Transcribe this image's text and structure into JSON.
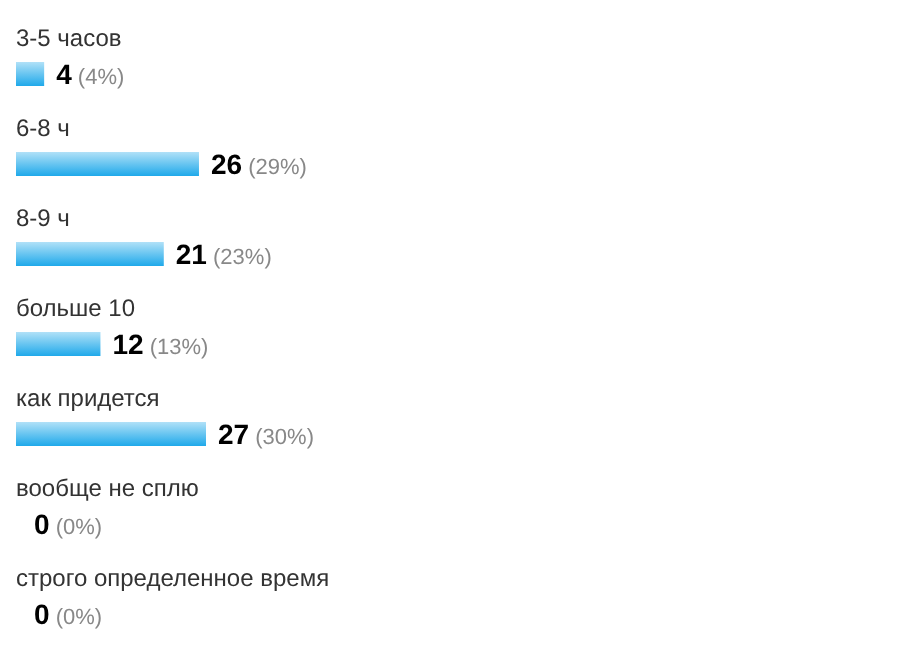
{
  "chart_data": {
    "type": "bar",
    "orientation": "horizontal",
    "categories": [
      "3-5 часов",
      "6-8 ч",
      "8-9 ч",
      "больше 10",
      "как придется",
      "вообще не сплю",
      "строго определенное время"
    ],
    "values": [
      4,
      26,
      21,
      12,
      27,
      0,
      0
    ],
    "value_labels": [
      "4 (4%)",
      "26 (29%)",
      "21 (23%)",
      "12 (13%)",
      "27 (30%)",
      "0 (0%)",
      "0 (0%)"
    ],
    "color": "#1fa9ea",
    "grid": false,
    "legend": false
  }
}
